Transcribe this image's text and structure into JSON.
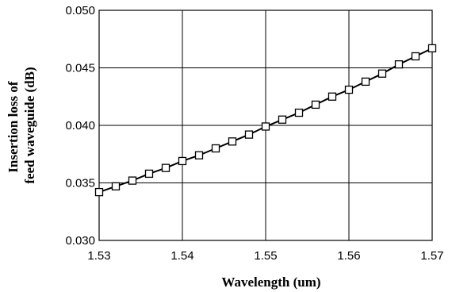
{
  "chart_data": {
    "type": "line",
    "title": "",
    "xlabel": "Wavelength (um)",
    "ylabel_lines": [
      "Insertion loss of",
      "feed waveguide (dB)"
    ],
    "xlim": [
      1.53,
      1.57
    ],
    "ylim": [
      0.03,
      0.05
    ],
    "x_ticks": [
      1.53,
      1.54,
      1.55,
      1.56,
      1.57
    ],
    "y_ticks": [
      0.03,
      0.035,
      0.04,
      0.045,
      0.05
    ],
    "x_tick_labels": [
      "1.53",
      "1.54",
      "1.55",
      "1.56",
      "1.57"
    ],
    "y_tick_labels": [
      "0.030",
      "0.035",
      "0.040",
      "0.045",
      "0.050"
    ],
    "grid": true,
    "legend": "none",
    "marker": "open-square",
    "line_color": "#000000",
    "series": [
      {
        "x": [
          1.53,
          1.532,
          1.534,
          1.536,
          1.538,
          1.54,
          1.542,
          1.544,
          1.546,
          1.548,
          1.55,
          1.552,
          1.554,
          1.556,
          1.558,
          1.56,
          1.562,
          1.564,
          1.566,
          1.568,
          1.57
        ],
        "values": [
          0.0342,
          0.0347,
          0.0352,
          0.0358,
          0.0363,
          0.0369,
          0.0374,
          0.038,
          0.0386,
          0.0392,
          0.0399,
          0.0405,
          0.0411,
          0.0418,
          0.0425,
          0.0431,
          0.0438,
          0.0445,
          0.0453,
          0.046,
          0.0467
        ]
      }
    ]
  }
}
